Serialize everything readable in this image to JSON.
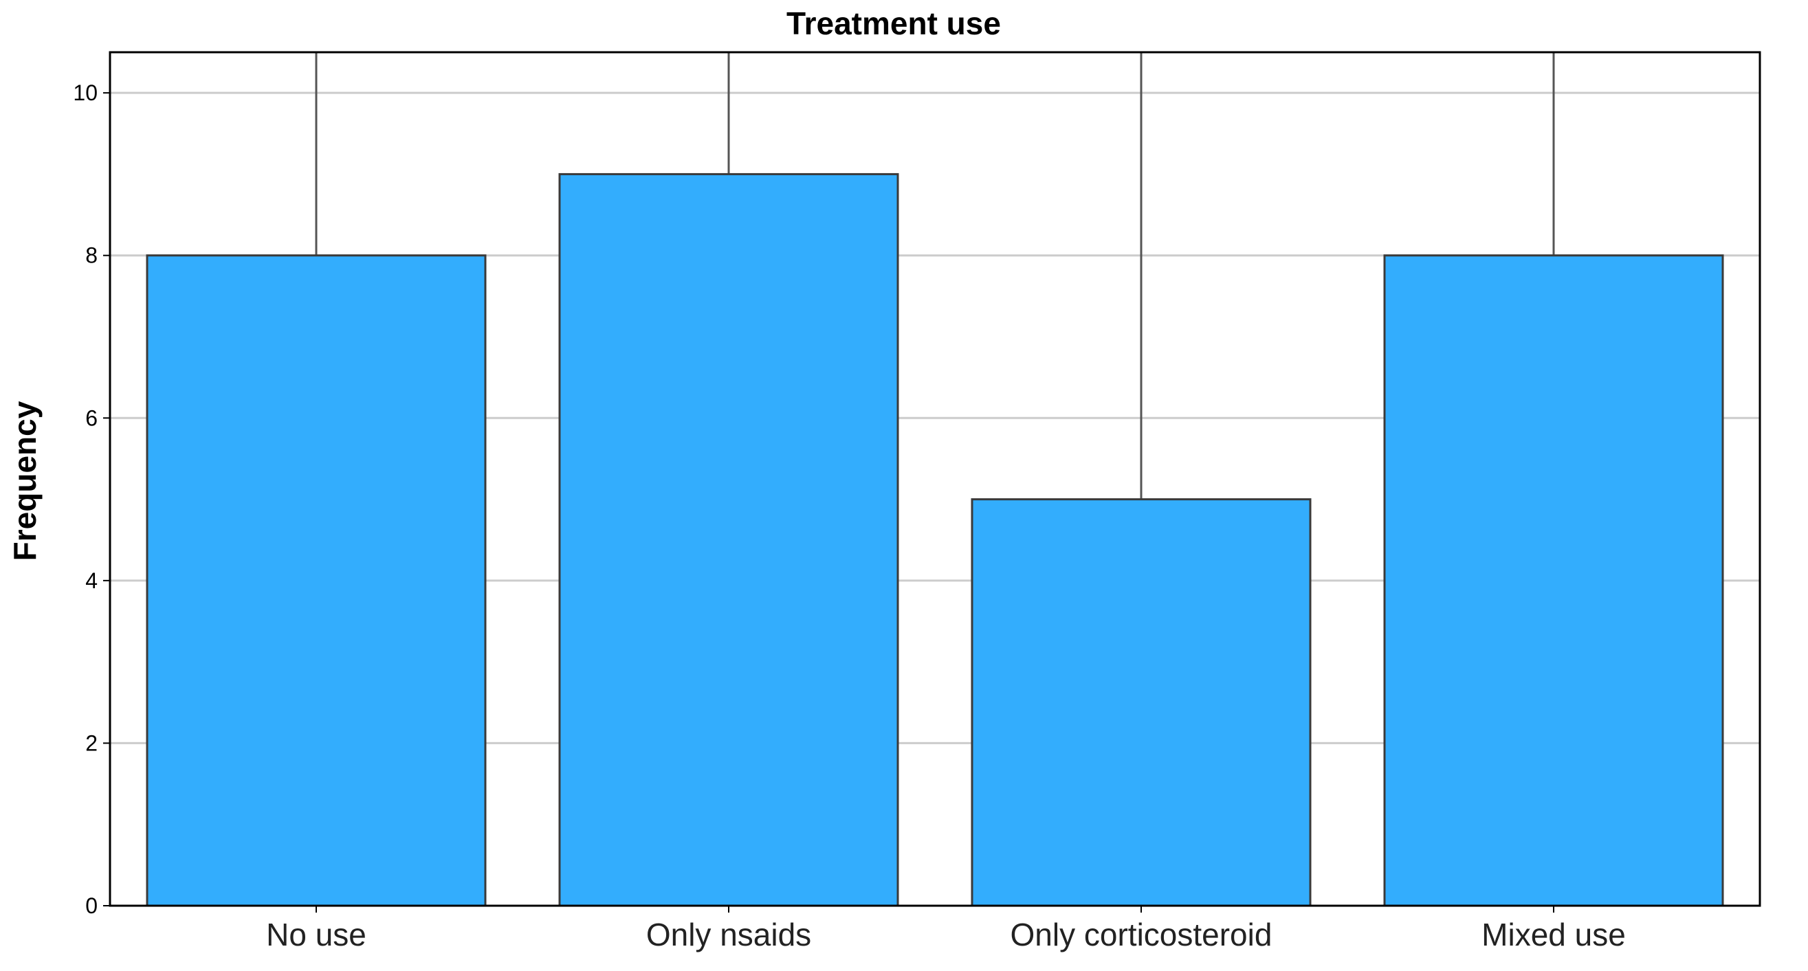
{
  "chart_data": {
    "type": "bar",
    "title": "Treatment use",
    "xlabel": "",
    "ylabel": "Frequency",
    "categories": [
      "No use",
      "Only nsaids",
      "Only corticosteroid",
      "Mixed use"
    ],
    "values": [
      8,
      9,
      5,
      8
    ],
    "ylim": [
      0,
      10.5
    ],
    "yticks": [
      0,
      2,
      4,
      6,
      8,
      10
    ],
    "grid": "horizontal",
    "legend": "none",
    "colors": {
      "bar_fill": "#33adfd",
      "bar_stroke": "#3a3a3a",
      "gridline": "#cccccc",
      "axis": "#000000",
      "category_divider": "#555555"
    }
  }
}
